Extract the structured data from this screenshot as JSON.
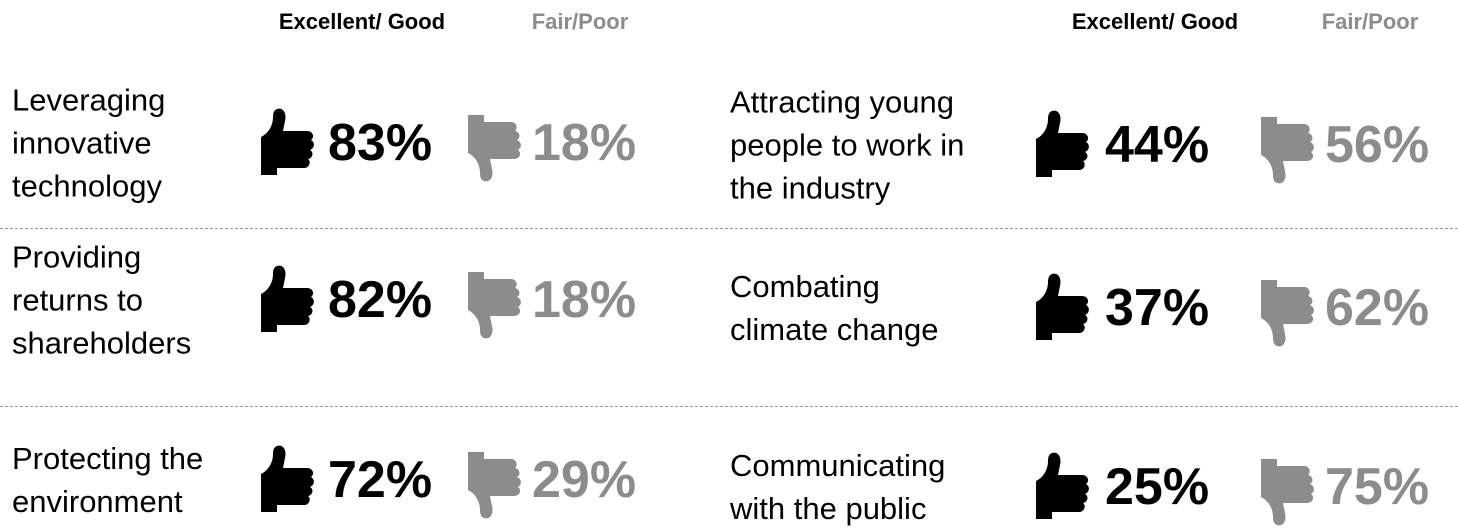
{
  "columns": [
    {
      "headers": {
        "good": "Excellent/ Good",
        "poor": "Fair/Poor"
      },
      "rows": [
        {
          "label": [
            "Leveraging",
            "innovative",
            "technology"
          ],
          "good": "83%",
          "poor": "18%"
        },
        {
          "label": [
            "Providing",
            "returns to",
            "shareholders"
          ],
          "good": "82%",
          "poor": "18%"
        },
        {
          "label": [
            "Protecting the",
            "environment"
          ],
          "good": "72%",
          "poor": "29%"
        }
      ]
    },
    {
      "headers": {
        "good": "Excellent/ Good",
        "poor": "Fair/Poor"
      },
      "rows": [
        {
          "label": [
            "Attracting young",
            "people to work in",
            "the industry"
          ],
          "good": "44%",
          "poor": "56%"
        },
        {
          "label": [
            "Combating",
            "climate change"
          ],
          "good": "37%",
          "poor": "62%"
        },
        {
          "label": [
            "Communicating",
            "with the public"
          ],
          "good": "25%",
          "poor": "75%"
        }
      ]
    }
  ]
}
